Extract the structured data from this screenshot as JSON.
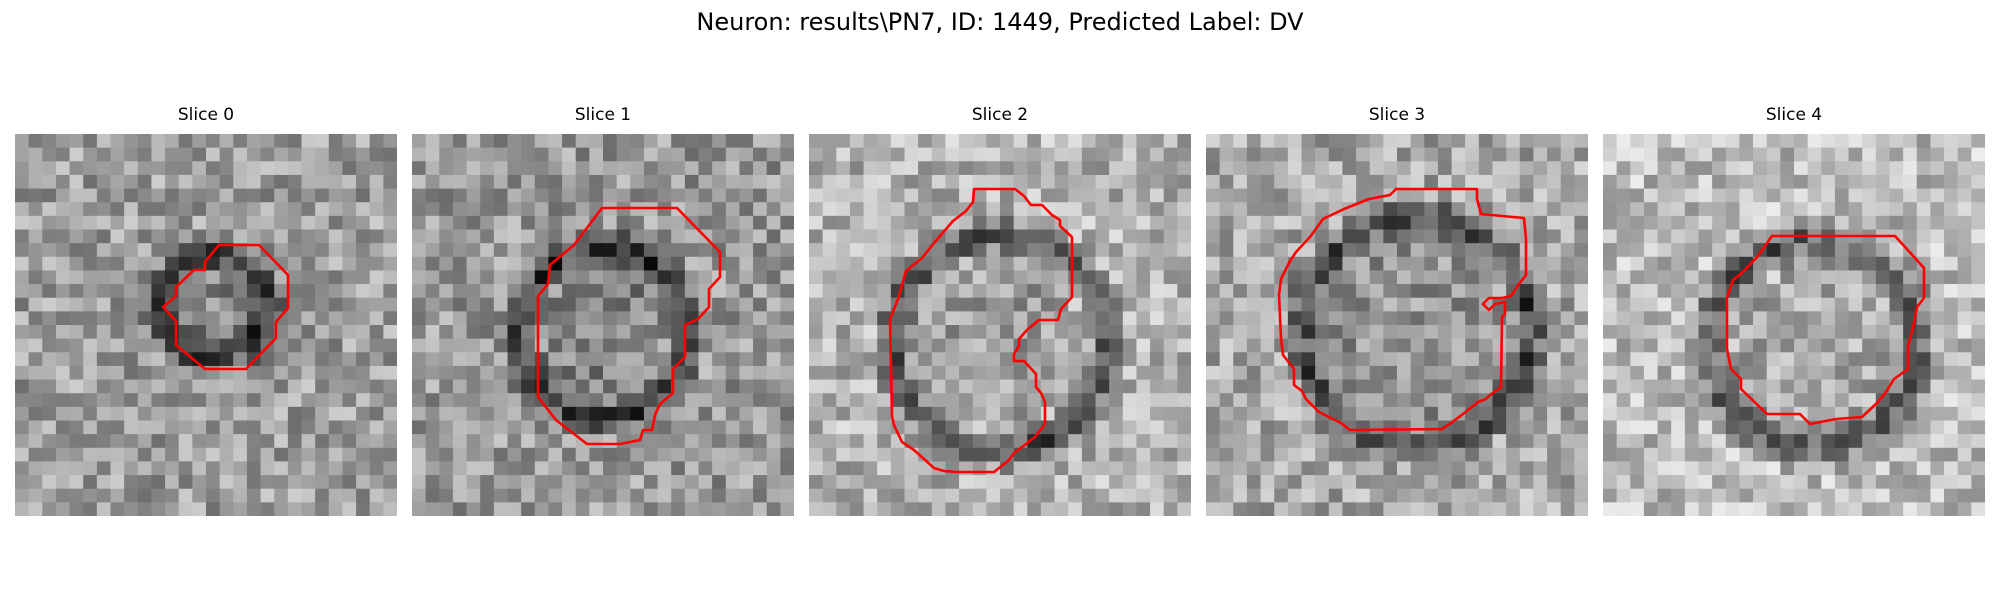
{
  "figure": {
    "title": "Neuron: results\\PN7, ID: 1449, Predicted Label: DV"
  },
  "slices": [
    {
      "title": "Slice 0"
    },
    {
      "title": "Slice 1"
    },
    {
      "title": "Slice 2"
    },
    {
      "title": "Slice 3"
    },
    {
      "title": "Slice 4"
    }
  ],
  "colors": {
    "contour": "#ff0000",
    "colormap": "grayscale"
  }
}
